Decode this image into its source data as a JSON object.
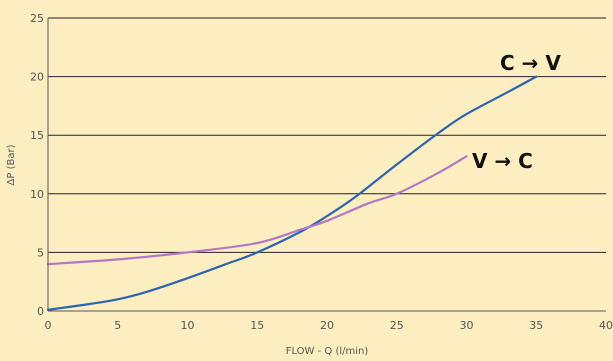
{
  "chart_data": {
    "type": "line",
    "xlabel": "FLOW - Q (l/min)",
    "ylabel": "ΔP (Bar)",
    "xlim": [
      0,
      40
    ],
    "ylim": [
      0,
      25
    ],
    "xticks": [
      0,
      5,
      10,
      15,
      20,
      25,
      30,
      35,
      40
    ],
    "yticks": [
      0,
      5,
      10,
      15,
      20,
      25
    ],
    "grid": "horizontal",
    "colors": {
      "background": "#fdeec2",
      "grid": "#222222"
    },
    "series": [
      {
        "name": "C → V",
        "color": "#2e63b0",
        "x": [
          0,
          3,
          5,
          7,
          10,
          13,
          15,
          18,
          20,
          22,
          25,
          28,
          30,
          33,
          35
        ],
        "y": [
          0.1,
          0.6,
          1.0,
          1.6,
          2.8,
          4.1,
          5.0,
          6.7,
          8.1,
          9.7,
          12.5,
          15.2,
          16.8,
          18.7,
          20.0
        ]
      },
      {
        "name": "V → C",
        "color": "#b278c4",
        "x": [
          0,
          5,
          10,
          15,
          18,
          20,
          23,
          25,
          28,
          30
        ],
        "y": [
          4.0,
          4.4,
          5.0,
          5.8,
          6.9,
          7.7,
          9.2,
          10.0,
          11.8,
          13.2
        ]
      }
    ]
  }
}
